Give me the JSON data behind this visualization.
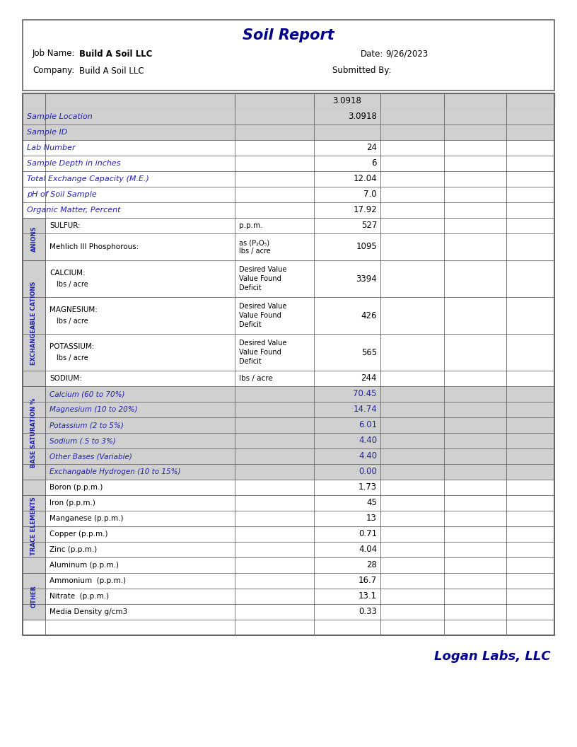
{
  "title": "Soil Report",
  "job_name_label": "Job Name:",
  "job_name_value": "Build A Soil LLC",
  "date_label": "Date:",
  "date_value": "9/26/2023",
  "company_label": "Company:",
  "company_value": "Build A Soil LLC",
  "submitted_label": "Submitted By:",
  "footer": "Logan Labs, LLC",
  "dark_blue": "#00008B",
  "section_bg": "#d0d0d0",
  "border_color": "#666666",
  "blue_text": "#2222AA",
  "rows": [
    {
      "label": "Sample Location",
      "value": "3.0918",
      "italic": true,
      "bg": "gray",
      "section": null,
      "unit": null,
      "tall": false
    },
    {
      "label": "Sample ID",
      "value": "",
      "italic": true,
      "bg": "gray",
      "section": null,
      "unit": null,
      "tall": false
    },
    {
      "label": "Lab Number",
      "value": "24",
      "italic": true,
      "bg": "white",
      "section": null,
      "unit": null,
      "tall": false
    },
    {
      "label": "Sample Depth in inches",
      "value": "6",
      "italic": true,
      "bg": "white",
      "section": null,
      "unit": null,
      "tall": false
    },
    {
      "label": "Total Exchange Capacity (M.E.)",
      "value": "12.04",
      "italic": true,
      "bg": "white",
      "section": null,
      "unit": null,
      "tall": false
    },
    {
      "label": "pH of Soil Sample",
      "value": "7.0",
      "italic": true,
      "bg": "white",
      "section": null,
      "unit": null,
      "tall": false
    },
    {
      "label": "Organic Matter, Percent",
      "value": "17.92",
      "italic": true,
      "bg": "white",
      "section": null,
      "unit": null,
      "tall": false
    },
    {
      "label": "SULFUR:",
      "value": "527",
      "italic": false,
      "bg": "white",
      "section": "ANIONS",
      "unit": "p.p.m.",
      "tall": false
    },
    {
      "label": "Mehlich III Phosphorous:",
      "value": "1095",
      "italic": false,
      "bg": "white",
      "section": "ANIONS",
      "unit": "as (P₂O₅)\nlbs / acre",
      "tall": true
    },
    {
      "label": "CALCIUM:",
      "value": "3394",
      "italic": false,
      "bg": "white",
      "section": "EXCHANGEABLE CATIONS",
      "unit": "Desired Value\nValue Found\nDeficit",
      "tall": true
    },
    {
      "label": "MAGNESIUM:",
      "value": "426",
      "italic": false,
      "bg": "white",
      "section": "EXCHANGEABLE CATIONS",
      "unit": "Desired Value\nValue Found\nDeficit",
      "tall": true
    },
    {
      "label": "POTASSIUM:",
      "value": "565",
      "italic": false,
      "bg": "white",
      "section": "EXCHANGEABLE CATIONS",
      "unit": "Desired Value\nValue Found\nDeficit",
      "tall": true
    },
    {
      "label": "SODIUM:",
      "value": "244",
      "italic": false,
      "bg": "white",
      "section": "EXCHANGEABLE CATIONS",
      "unit": "lbs / acre",
      "tall": false
    },
    {
      "label": "Calcium (60 to 70%)",
      "value": "70.45",
      "italic": false,
      "bg": "gray",
      "section": "BASE SATURATION %",
      "unit": null,
      "tall": false
    },
    {
      "label": "Magnesium (10 to 20%)",
      "value": "14.74",
      "italic": false,
      "bg": "gray",
      "section": "BASE SATURATION %",
      "unit": null,
      "tall": false
    },
    {
      "label": "Potassium (2 to 5%)",
      "value": "6.01",
      "italic": false,
      "bg": "gray",
      "section": "BASE SATURATION %",
      "unit": null,
      "tall": false
    },
    {
      "label": "Sodium (.5 to 3%)",
      "value": "4.40",
      "italic": false,
      "bg": "gray",
      "section": "BASE SATURATION %",
      "unit": null,
      "tall": false
    },
    {
      "label": "Other Bases (Variable)",
      "value": "4.40",
      "italic": false,
      "bg": "gray",
      "section": "BASE SATURATION %",
      "unit": null,
      "tall": false
    },
    {
      "label": "Exchangable Hydrogen (10 to 15%)",
      "value": "0.00",
      "italic": false,
      "bg": "gray",
      "section": "BASE SATURATION %",
      "unit": null,
      "tall": false
    },
    {
      "label": "Boron (p.p.m.)",
      "value": "1.73",
      "italic": false,
      "bg": "white",
      "section": "TRACE ELEMENTS",
      "unit": null,
      "tall": false
    },
    {
      "label": "Iron (p.p.m.)",
      "value": "45",
      "italic": false,
      "bg": "white",
      "section": "TRACE ELEMENTS",
      "unit": null,
      "tall": false
    },
    {
      "label": "Manganese (p.p.m.)",
      "value": "13",
      "italic": false,
      "bg": "white",
      "section": "TRACE ELEMENTS",
      "unit": null,
      "tall": false
    },
    {
      "label": "Copper (p.p.m.)",
      "value": "0.71",
      "italic": false,
      "bg": "white",
      "section": "TRACE ELEMENTS",
      "unit": null,
      "tall": false
    },
    {
      "label": "Zinc (p.p.m.)",
      "value": "4.04",
      "italic": false,
      "bg": "white",
      "section": "TRACE ELEMENTS",
      "unit": null,
      "tall": false
    },
    {
      "label": "Aluminum (p.p.m.)",
      "value": "28",
      "italic": false,
      "bg": "white",
      "section": "TRACE ELEMENTS",
      "unit": null,
      "tall": false
    },
    {
      "label": "Ammonium  (p.p.m.)",
      "value": "16.7",
      "italic": false,
      "bg": "white",
      "section": "OTHER",
      "unit": null,
      "tall": false
    },
    {
      "label": "Nitrate  (p.p.m.)",
      "value": "13.1",
      "italic": false,
      "bg": "white",
      "section": "OTHER",
      "unit": null,
      "tall": false
    },
    {
      "label": "Media Density g/cm3",
      "value": "0.33",
      "italic": false,
      "bg": "white",
      "section": "OTHER",
      "unit": null,
      "tall": false
    },
    {
      "label": "",
      "value": "",
      "italic": false,
      "bg": "white",
      "section": null,
      "unit": null,
      "tall": false
    }
  ],
  "section_order": [
    "ANIONS",
    "EXCHANGEABLE CATIONS",
    "BASE SATURATION %",
    "TRACE ELEMENTS",
    "OTHER"
  ]
}
